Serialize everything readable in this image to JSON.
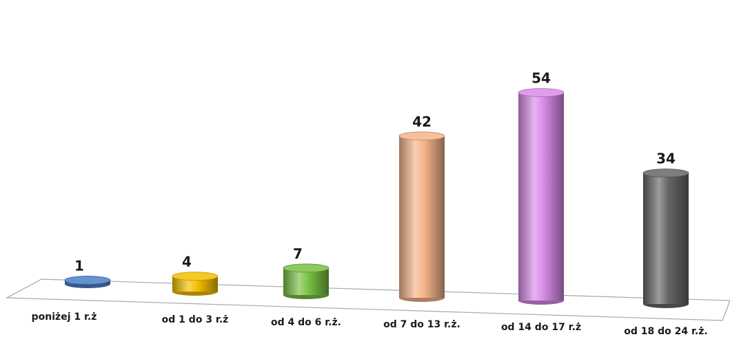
{
  "chart_data": {
    "type": "bar",
    "style": "3d-cylinder",
    "categories": [
      "poniżej 1 r.ż",
      "od 1 do 3 r.ż",
      "od 4 do 6 r.ż.",
      "od 7 do 13 r.ż.",
      "od 14 do 17 r.ż",
      "od 18 do 24 r.ż."
    ],
    "values": [
      1,
      4,
      7,
      42,
      54,
      34
    ],
    "colors": [
      "#4a7fc9",
      "#f5c000",
      "#7ac143",
      "#f5b48a",
      "#d88be8",
      "#666666"
    ],
    "title": "",
    "xlabel": "",
    "ylabel": "",
    "ylim": [
      0,
      54
    ],
    "grid": false,
    "legend": "none",
    "data_labels": true
  }
}
